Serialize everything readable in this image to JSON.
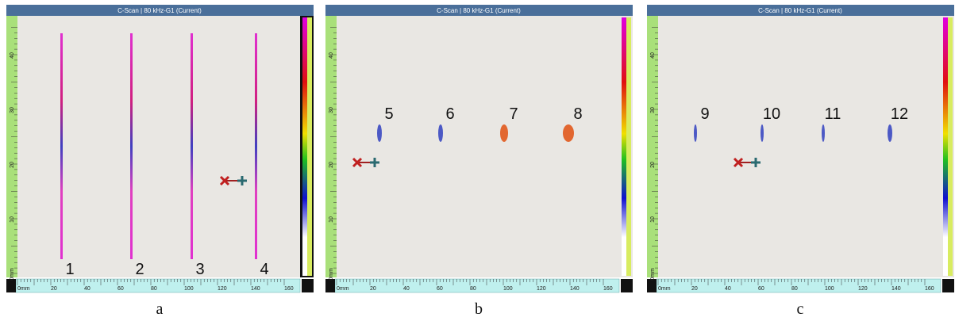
{
  "panels": [
    {
      "title": "C-Scan | 80 kHz-G1 (Current)",
      "caption": "a",
      "y_labels": [
        "40",
        "30",
        "20",
        "10",
        "0mm"
      ],
      "x_labels": [
        "0mm",
        "20",
        "40",
        "60",
        "80",
        "100",
        "120",
        "140",
        "160"
      ],
      "markers": [
        "1",
        "2",
        "3",
        "4"
      ]
    },
    {
      "title": "C-Scan | 80 kHz-G1 (Current)",
      "caption": "b",
      "y_labels": [
        "40",
        "30",
        "20",
        "10",
        "0mm"
      ],
      "x_labels": [
        "0mm",
        "20",
        "40",
        "60",
        "80",
        "100",
        "120",
        "140",
        "160"
      ],
      "markers": [
        "5",
        "6",
        "7",
        "8"
      ]
    },
    {
      "title": "C-Scan | 80 kHz-G1 (Current)",
      "caption": "c",
      "y_labels": [
        "40",
        "30",
        "20",
        "10",
        "0mm"
      ],
      "x_labels": [
        "0mm",
        "20",
        "40",
        "60",
        "80",
        "100",
        "120",
        "140",
        "160"
      ],
      "markers": [
        "9",
        "10",
        "11",
        "12"
      ]
    }
  ]
}
